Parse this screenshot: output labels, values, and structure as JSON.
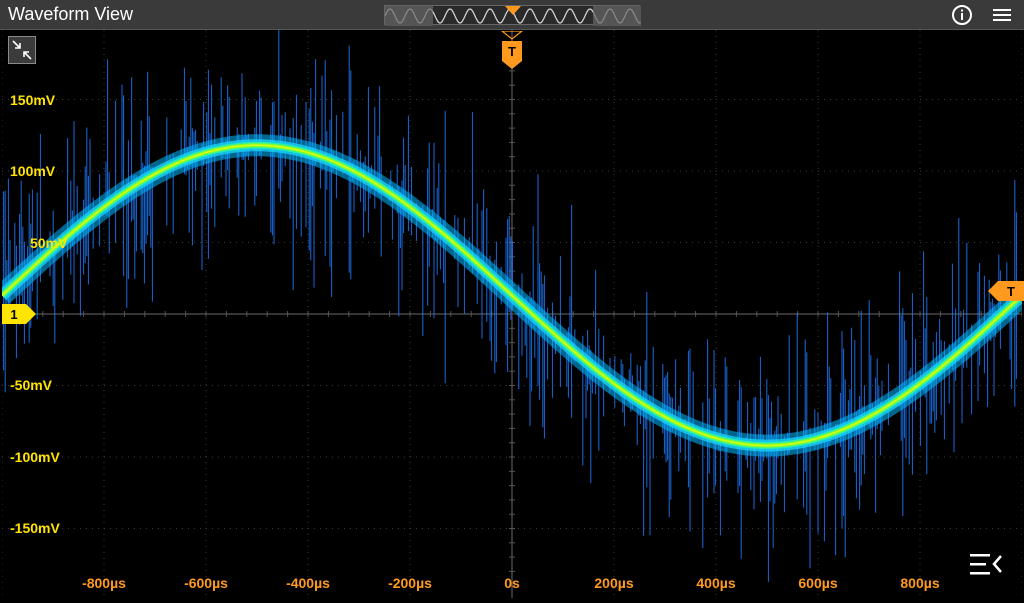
{
  "window": {
    "title": "Waveform View"
  },
  "header": {
    "info_icon": "info-icon",
    "menu_icon": "hamburger-menu-icon"
  },
  "plot": {
    "y_labels": [
      "150mV",
      "100mV",
      "50mV",
      "-50mV",
      "-100mV",
      "-150mV"
    ],
    "x_labels": [
      "-800µs",
      "-600µs",
      "-400µs",
      "-200µs",
      "0s",
      "200µs",
      "400µs",
      "600µs",
      "800µs"
    ],
    "channel_marker": "1",
    "trigger_marker_top": "T",
    "trigger_marker_right": "T"
  },
  "colors": {
    "y_labels": "#ffe400",
    "x_labels": "#ff9a1f",
    "trigger": "#ff9a1f",
    "grid": "#3c3c3c",
    "trace_core": "#7dff2a",
    "trace_halo": "#00b8ff",
    "trace_noise": "#1f7bff"
  },
  "signal": {
    "type": "sine",
    "amplitude_mv": 105,
    "offset_mv": 13,
    "period_us": 1000,
    "phase_zero_crossing_falling_us": 0
  }
}
